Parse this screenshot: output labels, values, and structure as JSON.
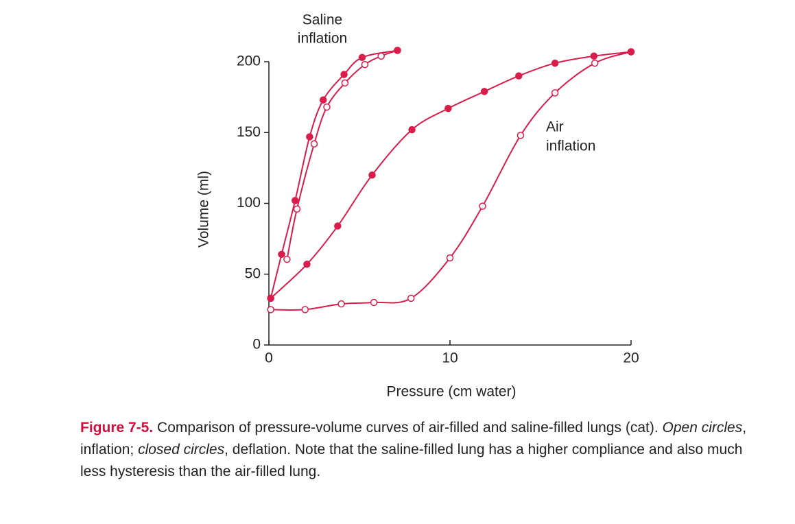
{
  "chart_data": {
    "type": "line",
    "xlabel": "Pressure (cm water)",
    "ylabel": "Volume (ml)",
    "annotations": [
      [
        "Saline",
        "inflation"
      ],
      [
        "Air",
        "inflation"
      ]
    ],
    "xlim": [
      0,
      20
    ],
    "xticks": [
      0,
      10,
      20
    ],
    "ylim": [
      0,
      200
    ],
    "yticks": [
      0,
      50,
      100,
      150,
      200
    ],
    "series": [
      {
        "color": "#d91c4a",
        "marker": "open",
        "x": [
          0.1,
          2,
          4,
          5.8,
          7.85,
          10,
          11.8,
          13.9,
          15.8,
          18,
          20
        ],
        "values": [
          25,
          25,
          29,
          30,
          33,
          61.5,
          98,
          148,
          178,
          199,
          207
        ]
      },
      {
        "color": "#d91c4a",
        "marker": "closed",
        "x": [
          20,
          17.95,
          15.8,
          13.8,
          11.9,
          9.9,
          7.9,
          5.7,
          3.8,
          2.1,
          0.1
        ],
        "values": [
          207,
          204,
          199,
          190,
          179,
          167,
          152,
          120,
          84,
          57,
          33
        ]
      },
      {
        "color": "#d91c4a",
        "marker": "open",
        "x": [
          1.0,
          1.55,
          2.5,
          3.2,
          4.2,
          5.3,
          6.2,
          7.1
        ],
        "values": [
          60.5,
          96,
          142,
          168,
          185,
          198,
          204,
          208
        ]
      },
      {
        "color": "#d91c4a",
        "marker": "closed",
        "x": [
          7.1,
          5.15,
          4.15,
          3.0,
          2.25,
          1.45,
          0.7,
          0.1
        ],
        "values": [
          208,
          203,
          191,
          173,
          147,
          102,
          64,
          33
        ]
      }
    ]
  },
  "caption": {
    "label": "Figure 7-5.",
    "segments": [
      " Comparison of pressure-volume curves of air-filled and saline-filled lungs (cat). ",
      "Open circles",
      ", inflation; ",
      "closed circles",
      ", deflation. Note that the saline-filled lung has a higher compliance and also much less hysteresis than the air-filled lung."
    ]
  }
}
